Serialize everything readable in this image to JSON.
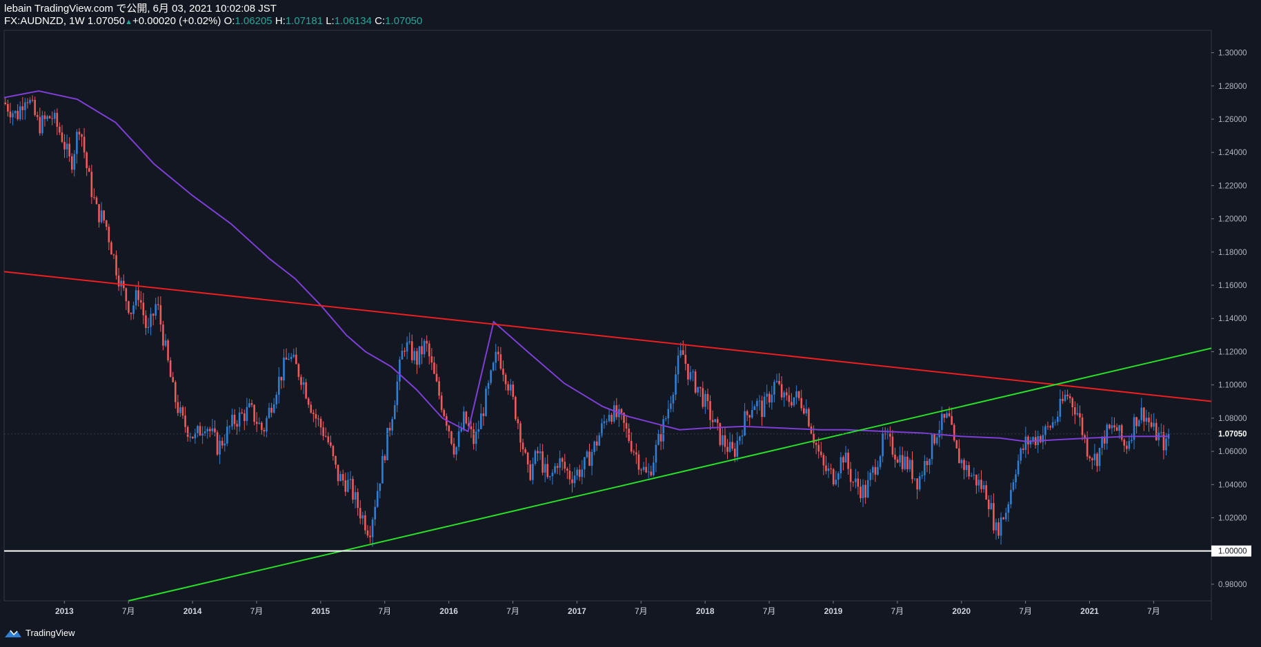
{
  "header": {
    "publisher": "lebain TradingView.com で公開, 6月 03, 2021 10:02:08 JST",
    "symbol": "FX:AUDNZD, 1W 1.07050",
    "change": "+0.00020 (+0.02%)",
    "o_label": "O:",
    "o_value": "1.06205",
    "h_label": "H:",
    "h_value": "1.07181",
    "l_label": "L:",
    "l_value": "1.06134",
    "c_label": "C:",
    "c_value": "1.07050"
  },
  "footer": {
    "brand": "TradingView"
  },
  "colors": {
    "background": "#131722",
    "up": "#2f80d4",
    "down": "#f05a5a",
    "ma": "#7e3fd8",
    "resistance": "#ef1f1f",
    "support": "#28e028",
    "parity": "#ffffff"
  },
  "chart_data": {
    "type": "candlestick",
    "symbol": "FX:AUDNZD",
    "interval": "1W",
    "ylim": [
      0.97,
      1.3135
    ],
    "xlim": [
      2012.53,
      2021.95
    ],
    "y_ticks": [
      "0.98000",
      "1.00000",
      "1.02000",
      "1.04000",
      "1.06000",
      "1.08000",
      "1.10000",
      "1.12000",
      "1.14000",
      "1.16000",
      "1.18000",
      "1.20000",
      "1.22000",
      "1.24000",
      "1.26000",
      "1.28000",
      "1.30000"
    ],
    "x_ticks": [
      {
        "t": 2013.0,
        "label": "2013",
        "bold": true
      },
      {
        "t": 2013.5,
        "label": "7月",
        "bold": false
      },
      {
        "t": 2014.0,
        "label": "2014",
        "bold": true
      },
      {
        "t": 2014.5,
        "label": "7月",
        "bold": false
      },
      {
        "t": 2015.0,
        "label": "2015",
        "bold": true
      },
      {
        "t": 2015.5,
        "label": "7月",
        "bold": false
      },
      {
        "t": 2016.0,
        "label": "2016",
        "bold": true
      },
      {
        "t": 2016.5,
        "label": "7月",
        "bold": false
      },
      {
        "t": 2017.0,
        "label": "2017",
        "bold": true
      },
      {
        "t": 2017.5,
        "label": "7月",
        "bold": false
      },
      {
        "t": 2018.0,
        "label": "2018",
        "bold": true
      },
      {
        "t": 2018.5,
        "label": "7月",
        "bold": false
      },
      {
        "t": 2019.0,
        "label": "2019",
        "bold": true
      },
      {
        "t": 2019.5,
        "label": "7月",
        "bold": false
      },
      {
        "t": 2020.0,
        "label": "2020",
        "bold": true
      },
      {
        "t": 2020.5,
        "label": "7月",
        "bold": false
      },
      {
        "t": 2021.0,
        "label": "2021",
        "bold": true
      },
      {
        "t": 2021.5,
        "label": "7月",
        "bold": false
      }
    ],
    "price_path": [
      [
        2012.53,
        1.27
      ],
      [
        2012.63,
        1.262
      ],
      [
        2012.7,
        1.276
      ],
      [
        2012.8,
        1.256
      ],
      [
        2012.9,
        1.262
      ],
      [
        2012.98,
        1.25
      ],
      [
        2013.05,
        1.232
      ],
      [
        2013.12,
        1.258
      ],
      [
        2013.18,
        1.228
      ],
      [
        2013.25,
        1.205
      ],
      [
        2013.32,
        1.198
      ],
      [
        2013.4,
        1.172
      ],
      [
        2013.45,
        1.158
      ],
      [
        2013.52,
        1.145
      ],
      [
        2013.58,
        1.156
      ],
      [
        2013.65,
        1.13
      ],
      [
        2013.72,
        1.15
      ],
      [
        2013.78,
        1.125
      ],
      [
        2013.85,
        1.095
      ],
      [
        2013.92,
        1.078
      ],
      [
        2014.02,
        1.068
      ],
      [
        2014.1,
        1.078
      ],
      [
        2014.2,
        1.062
      ],
      [
        2014.32,
        1.078
      ],
      [
        2014.45,
        1.085
      ],
      [
        2014.55,
        1.072
      ],
      [
        2014.65,
        1.098
      ],
      [
        2014.75,
        1.118
      ],
      [
        2014.85,
        1.105
      ],
      [
        2014.95,
        1.082
      ],
      [
        2015.05,
        1.068
      ],
      [
        2015.13,
        1.045
      ],
      [
        2015.22,
        1.04
      ],
      [
        2015.3,
        1.025
      ],
      [
        2015.38,
        1.012
      ],
      [
        2015.45,
        1.04
      ],
      [
        2015.55,
        1.08
      ],
      [
        2015.65,
        1.125
      ],
      [
        2015.75,
        1.115
      ],
      [
        2015.82,
        1.125
      ],
      [
        2015.9,
        1.1
      ],
      [
        2015.98,
        1.08
      ],
      [
        2016.05,
        1.06
      ],
      [
        2016.12,
        1.08
      ],
      [
        2016.2,
        1.065
      ],
      [
        2016.3,
        1.095
      ],
      [
        2016.38,
        1.12
      ],
      [
        2016.45,
        1.105
      ],
      [
        2016.55,
        1.075
      ],
      [
        2016.62,
        1.045
      ],
      [
        2016.7,
        1.06
      ],
      [
        2016.78,
        1.04
      ],
      [
        2016.85,
        1.055
      ],
      [
        2016.95,
        1.045
      ],
      [
        2017.05,
        1.05
      ],
      [
        2017.15,
        1.065
      ],
      [
        2017.25,
        1.085
      ],
      [
        2017.35,
        1.078
      ],
      [
        2017.45,
        1.06
      ],
      [
        2017.55,
        1.044
      ],
      [
        2017.62,
        1.062
      ],
      [
        2017.7,
        1.082
      ],
      [
        2017.78,
        1.11
      ],
      [
        2017.82,
        1.12
      ],
      [
        2017.88,
        1.105
      ],
      [
        2017.95,
        1.098
      ],
      [
        2018.05,
        1.08
      ],
      [
        2018.12,
        1.068
      ],
      [
        2018.22,
        1.058
      ],
      [
        2018.3,
        1.078
      ],
      [
        2018.38,
        1.09
      ],
      [
        2018.45,
        1.085
      ],
      [
        2018.55,
        1.102
      ],
      [
        2018.62,
        1.09
      ],
      [
        2018.7,
        1.093
      ],
      [
        2018.78,
        1.088
      ],
      [
        2018.85,
        1.068
      ],
      [
        2018.92,
        1.05
      ],
      [
        2019.0,
        1.045
      ],
      [
        2019.08,
        1.058
      ],
      [
        2019.15,
        1.042
      ],
      [
        2019.25,
        1.035
      ],
      [
        2019.32,
        1.05
      ],
      [
        2019.4,
        1.068
      ],
      [
        2019.5,
        1.058
      ],
      [
        2019.58,
        1.052
      ],
      [
        2019.66,
        1.042
      ],
      [
        2019.74,
        1.058
      ],
      [
        2019.82,
        1.075
      ],
      [
        2019.9,
        1.08
      ],
      [
        2019.95,
        1.06
      ],
      [
        2020.05,
        1.048
      ],
      [
        2020.12,
        1.042
      ],
      [
        2020.2,
        1.035
      ],
      [
        2020.27,
        1.012
      ],
      [
        2020.35,
        1.025
      ],
      [
        2020.42,
        1.05
      ],
      [
        2020.5,
        1.065
      ],
      [
        2020.58,
        1.068
      ],
      [
        2020.66,
        1.072
      ],
      [
        2020.74,
        1.08
      ],
      [
        2020.82,
        1.095
      ],
      [
        2020.9,
        1.085
      ],
      [
        2020.98,
        1.062
      ],
      [
        2021.05,
        1.055
      ],
      [
        2021.12,
        1.07
      ],
      [
        2021.2,
        1.075
      ],
      [
        2021.28,
        1.062
      ],
      [
        2021.36,
        1.08
      ],
      [
        2021.42,
        1.084
      ],
      [
        2021.5,
        1.072
      ],
      [
        2021.55,
        1.068
      ],
      [
        2021.6,
        1.063
      ],
      [
        2021.62,
        1.0705
      ]
    ],
    "moving_average": {
      "name": "MA",
      "points": [
        [
          2012.53,
          1.273
        ],
        [
          2012.8,
          1.277
        ],
        [
          2013.1,
          1.272
        ],
        [
          2013.4,
          1.258
        ],
        [
          2013.7,
          1.233
        ],
        [
          2014.0,
          1.214
        ],
        [
          2014.3,
          1.197
        ],
        [
          2014.6,
          1.176
        ],
        [
          2014.8,
          1.164
        ],
        [
          2015.0,
          1.148
        ],
        [
          2015.2,
          1.13
        ],
        [
          2015.35,
          1.12
        ],
        [
          2015.55,
          1.111
        ],
        [
          2015.75,
          1.097
        ],
        [
          2015.95,
          1.08
        ],
        [
          2016.15,
          1.072
        ],
        [
          2016.35,
          1.138
        ],
        [
          2016.6,
          1.121
        ],
        [
          2016.9,
          1.101
        ],
        [
          2017.2,
          1.087
        ],
        [
          2017.4,
          1.081
        ],
        [
          2017.6,
          1.077
        ],
        [
          2017.8,
          1.073
        ],
        [
          2018.0,
          1.074
        ],
        [
          2018.3,
          1.075
        ],
        [
          2018.6,
          1.074
        ],
        [
          2018.9,
          1.073
        ],
        [
          2019.1,
          1.073
        ],
        [
          2019.4,
          1.072
        ],
        [
          2019.7,
          1.071
        ],
        [
          2020.0,
          1.069
        ],
        [
          2020.3,
          1.068
        ],
        [
          2020.5,
          1.066
        ],
        [
          2020.75,
          1.067
        ],
        [
          2021.0,
          1.068
        ],
        [
          2021.3,
          1.069
        ],
        [
          2021.62,
          1.069
        ]
      ]
    },
    "trendlines": [
      {
        "name": "resistance",
        "color": "#ef1f1f",
        "from": [
          2012.53,
          1.1682
        ],
        "to": [
          2021.95,
          1.0901
        ]
      },
      {
        "name": "support",
        "color": "#28e028",
        "from": [
          2013.5,
          0.97
        ],
        "to": [
          2021.95,
          1.1221
        ]
      },
      {
        "name": "parity",
        "color": "#ffffff",
        "from": [
          2012.53,
          1.0
        ],
        "to": [
          2021.95,
          1.0
        ]
      }
    ],
    "last_price": "1.07050",
    "parity_label": "1.00000"
  }
}
